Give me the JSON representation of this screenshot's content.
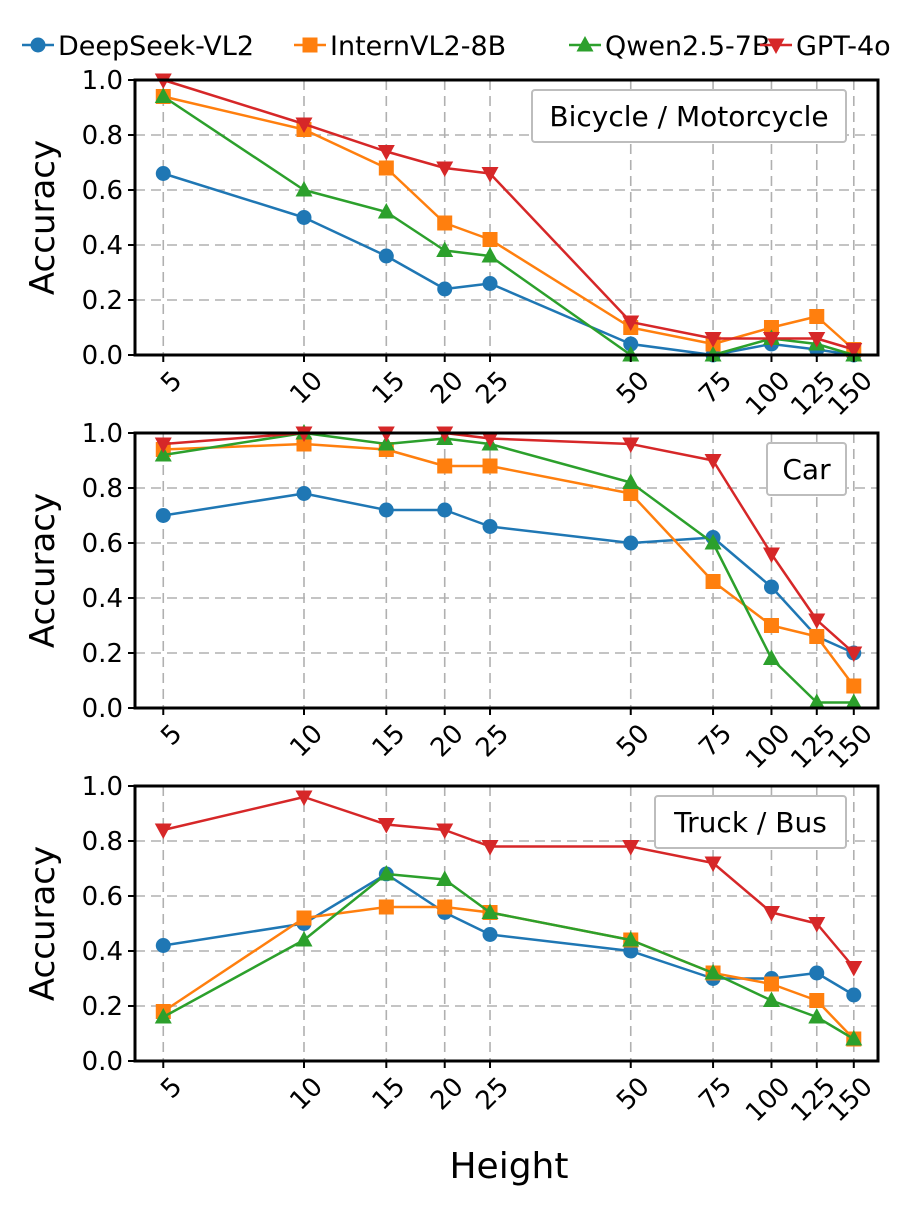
{
  "chart_data": {
    "type": "line",
    "xlabel": "Height",
    "ylabel": "Accuracy",
    "x": [
      5,
      10,
      15,
      20,
      25,
      50,
      75,
      100,
      125,
      150
    ],
    "x_scale": "log",
    "ylim": [
      0,
      1.0
    ],
    "yticks": [
      "0.0",
      "0.2",
      "0.4",
      "0.6",
      "0.8",
      "1.0"
    ],
    "grid": true,
    "legend_position": "top",
    "legend": [
      {
        "name": "DeepSeek-VL2",
        "color": "#1f77b4",
        "marker": "circle"
      },
      {
        "name": "InternVL2-8B",
        "color": "#ff7f0e",
        "marker": "square"
      },
      {
        "name": "Qwen2.5-7B",
        "color": "#2ca02c",
        "marker": "triangle-up"
      },
      {
        "name": "GPT-4o",
        "color": "#d62728",
        "marker": "triangle-down"
      }
    ],
    "panels": [
      {
        "label": "Bicycle / Motorcycle",
        "series": [
          {
            "name": "DeepSeek-VL2",
            "values": [
              0.66,
              0.5,
              0.36,
              0.24,
              0.26,
              0.04,
              0.0,
              0.04,
              0.02,
              0.0
            ]
          },
          {
            "name": "InternVL2-8B",
            "values": [
              0.94,
              0.82,
              0.68,
              0.48,
              0.42,
              0.1,
              0.04,
              0.1,
              0.14,
              0.02
            ]
          },
          {
            "name": "Qwen2.5-7B",
            "values": [
              0.94,
              0.6,
              0.52,
              0.38,
              0.36,
              0.0,
              0.0,
              0.06,
              0.04,
              0.0
            ]
          },
          {
            "name": "GPT-4o",
            "values": [
              1.0,
              0.84,
              0.74,
              0.68,
              0.66,
              0.12,
              0.06,
              0.06,
              0.06,
              0.02
            ]
          }
        ]
      },
      {
        "label": "Car",
        "series": [
          {
            "name": "DeepSeek-VL2",
            "values": [
              0.7,
              0.78,
              0.72,
              0.72,
              0.66,
              0.6,
              0.62,
              0.44,
              0.26,
              0.2
            ]
          },
          {
            "name": "InternVL2-8B",
            "values": [
              0.94,
              0.96,
              0.94,
              0.88,
              0.88,
              0.78,
              0.46,
              0.3,
              0.26,
              0.08
            ]
          },
          {
            "name": "Qwen2.5-7B",
            "values": [
              0.92,
              1.0,
              0.96,
              0.98,
              0.96,
              0.82,
              0.6,
              0.18,
              0.02,
              0.02
            ]
          },
          {
            "name": "GPT-4o",
            "values": [
              0.96,
              1.0,
              1.0,
              1.0,
              0.98,
              0.96,
              0.9,
              0.56,
              0.32,
              0.2
            ]
          }
        ]
      },
      {
        "label": "Truck / Bus",
        "series": [
          {
            "name": "DeepSeek-VL2",
            "values": [
              0.42,
              0.5,
              0.68,
              0.54,
              0.46,
              0.4,
              0.3,
              0.3,
              0.32,
              0.24
            ]
          },
          {
            "name": "InternVL2-8B",
            "values": [
              0.18,
              0.52,
              0.56,
              0.56,
              0.54,
              0.44,
              0.32,
              0.28,
              0.22,
              0.08
            ]
          },
          {
            "name": "Qwen2.5-7B",
            "values": [
              0.16,
              0.44,
              0.68,
              0.66,
              0.54,
              0.44,
              0.32,
              0.22,
              0.16,
              0.08
            ]
          },
          {
            "name": "GPT-4o",
            "values": [
              0.84,
              0.96,
              0.86,
              0.84,
              0.78,
              0.78,
              0.72,
              0.54,
              0.5,
              0.34
            ]
          }
        ]
      }
    ]
  }
}
